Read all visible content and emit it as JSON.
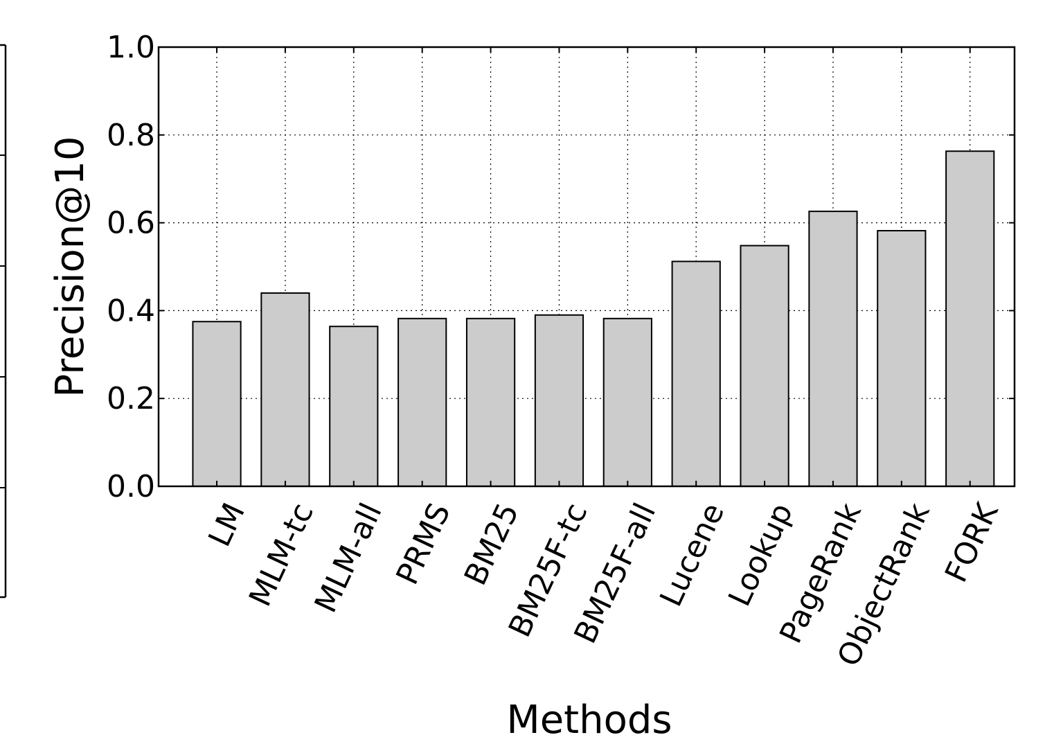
{
  "chart_data": {
    "type": "bar",
    "title": "",
    "xlabel": "Methods",
    "ylabel": "Precision@10",
    "categories": [
      "LM",
      "MLM-tc",
      "MLM-all",
      "PRMS",
      "BM25",
      "BM25F-tc",
      "BM25F-all",
      "Lucene",
      "Lookup",
      "PageRank",
      "ObjectRank",
      "FORK"
    ],
    "values": [
      0.375,
      0.44,
      0.364,
      0.382,
      0.382,
      0.39,
      0.382,
      0.512,
      0.548,
      0.626,
      0.582,
      0.763
    ],
    "ylim": [
      0.0,
      1.0
    ],
    "yticks": [
      "0.0",
      "0.2",
      "0.4",
      "0.6",
      "0.8",
      "1.0"
    ],
    "ytick_values": [
      0.0,
      0.2,
      0.4,
      0.6,
      0.8,
      1.0
    ],
    "grid": true,
    "bar_color": "#cccccc",
    "edge_color": "#000000"
  }
}
